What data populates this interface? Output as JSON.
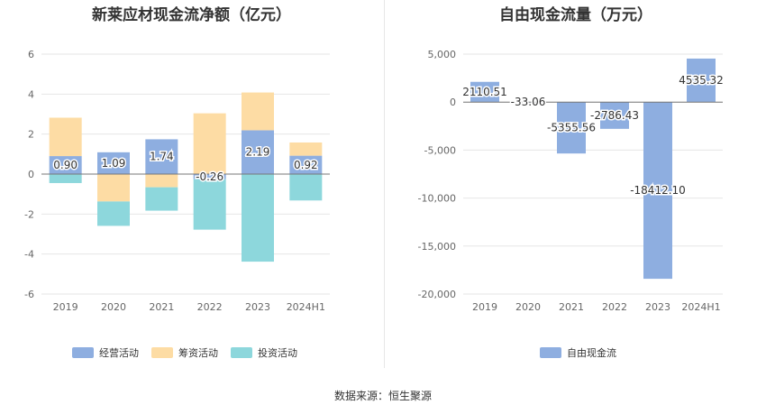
{
  "source": "数据来源：恒生聚源",
  "chart_data": [
    {
      "type": "bar",
      "stacked": true,
      "title": "新莱应材现金流净额（亿元）",
      "categories": [
        "2019",
        "2020",
        "2021",
        "2022",
        "2023",
        "2024H1"
      ],
      "ylim": [
        -6,
        6
      ],
      "yticks": [
        -6,
        -4,
        -2,
        0,
        2,
        4,
        6
      ],
      "grid": true,
      "legend_position": "bottom",
      "series": [
        {
          "name": "经营活动",
          "color": "#8eaee0",
          "values": [
            0.9,
            1.09,
            1.74,
            -0.26,
            2.19,
            0.92
          ]
        },
        {
          "name": "筹资活动",
          "color": "#fddca4",
          "values": [
            1.92,
            -1.37,
            -0.66,
            3.04,
            1.89,
            0.66
          ]
        },
        {
          "name": "投资活动",
          "color": "#8dd7dc",
          "values": [
            -0.45,
            -1.22,
            -1.17,
            -2.52,
            -4.38,
            -1.32
          ]
        }
      ],
      "data_labels": [
        "0.90",
        "1.09",
        "1.74",
        "-0.26",
        "2.19",
        "0.92"
      ]
    },
    {
      "type": "bar",
      "title": "自由现金流量（万元）",
      "categories": [
        "2019",
        "2020",
        "2021",
        "2022",
        "2023",
        "2024H1"
      ],
      "ylim": [
        -20000,
        5000
      ],
      "yticks": [
        -20000,
        -15000,
        -10000,
        -5000,
        0,
        5000
      ],
      "ytick_labels": [
        "-20,000",
        "-15,000",
        "-10,000",
        "-5,000",
        "0",
        "5,000"
      ],
      "grid": true,
      "legend_position": "bottom",
      "series": [
        {
          "name": "自由现金流",
          "color": "#8eaee0",
          "values": [
            2110.51,
            -33.06,
            -5355.56,
            -2786.43,
            -18412.1,
            4535.32
          ]
        }
      ],
      "data_labels": [
        "2110.51",
        "-33.06",
        "-5355.56",
        "-2786.43",
        "-18412.10",
        "4535.32"
      ]
    }
  ]
}
